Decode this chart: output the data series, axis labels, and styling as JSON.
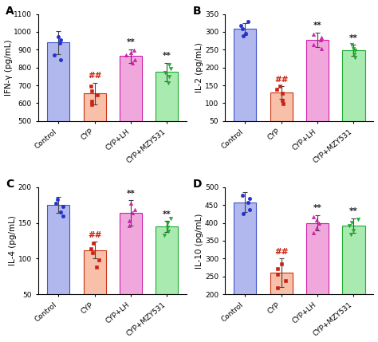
{
  "panels": [
    {
      "label": "A",
      "ylabel": "IFN-γ (pg/mL)",
      "ylim": [
        500,
        1100
      ],
      "yticks": [
        500,
        600,
        700,
        800,
        900,
        1000,
        1100
      ],
      "bar_values": [
        940,
        655,
        865,
        775
      ],
      "bar_errors": [
        65,
        60,
        38,
        52
      ],
      "bar_colors": [
        "#b0b8ee",
        "#f8c0a8",
        "#f0a8dc",
        "#a8eab0"
      ],
      "bar_edge_colors": [
        "#4455cc",
        "#cc3010",
        "#cc20aa",
        "#20aa30"
      ],
      "dot_colors": [
        "#2233cc",
        "#cc2010",
        "#cc20aa",
        "#20aa30"
      ],
      "dot_values": [
        [
          845,
          870,
          935,
          955,
          975
        ],
        [
          595,
          610,
          645,
          668,
          695
        ],
        [
          825,
          845,
          868,
          882,
          898
        ],
        [
          715,
          748,
          770,
          795,
          815
        ]
      ],
      "dot_markers": [
        "o",
        "s",
        "^",
        "v"
      ],
      "categories": [
        "Control",
        "CYP",
        "CYP+LH",
        "CYP+MZY531"
      ],
      "sig_labels": [
        "",
        "##",
        "**",
        "**"
      ],
      "sig_colors": [
        "",
        "#cc2010",
        "#222222",
        "#222222"
      ]
    },
    {
      "label": "B",
      "ylabel": "IL-2 (pg/mL)",
      "ylim": [
        50,
        350
      ],
      "yticks": [
        50,
        100,
        150,
        200,
        250,
        300,
        350
      ],
      "bar_values": [
        308,
        130,
        278,
        248
      ],
      "bar_errors": [
        16,
        18,
        20,
        16
      ],
      "bar_colors": [
        "#b0b8ee",
        "#f8c0a8",
        "#f0a8dc",
        "#a8eab0"
      ],
      "bar_edge_colors": [
        "#4455cc",
        "#cc3010",
        "#cc20aa",
        "#20aa30"
      ],
      "dot_colors": [
        "#2233cc",
        "#cc2010",
        "#cc20aa",
        "#20aa30"
      ],
      "dot_values": [
        [
          288,
          296,
          308,
          318,
          328
        ],
        [
          98,
          108,
          128,
          140,
          148
        ],
        [
          254,
          263,
          278,
          284,
          293
        ],
        [
          228,
          238,
          248,
          254,
          263
        ]
      ],
      "dot_markers": [
        "o",
        "s",
        "^",
        "v"
      ],
      "categories": [
        "Control",
        "CYP",
        "CYP+LH",
        "CYP+MZY531"
      ],
      "sig_labels": [
        "",
        "##",
        "**",
        "**"
      ],
      "sig_colors": [
        "",
        "#cc2010",
        "#222222",
        "#222222"
      ]
    },
    {
      "label": "C",
      "ylabel": "IL-4 (pg/mL)",
      "ylim": [
        50,
        200
      ],
      "yticks": [
        50,
        100,
        150,
        200
      ],
      "bar_values": [
        175,
        112,
        164,
        145
      ],
      "bar_errors": [
        11,
        12,
        18,
        8
      ],
      "bar_colors": [
        "#b0b8ee",
        "#f8c0a8",
        "#f0a8dc",
        "#a8eab0"
      ],
      "bar_edge_colors": [
        "#4455cc",
        "#cc3010",
        "#cc20aa",
        "#20aa30"
      ],
      "dot_colors": [
        "#2233cc",
        "#cc2010",
        "#cc20aa",
        "#20aa30"
      ],
      "dot_values": [
        [
          160,
          165,
          173,
          178,
          183
        ],
        [
          88,
          98,
          108,
          114,
          122
        ],
        [
          146,
          153,
          164,
          169,
          178
        ],
        [
          133,
          138,
          144,
          150,
          156
        ]
      ],
      "dot_markers": [
        "o",
        "s",
        "^",
        "v"
      ],
      "categories": [
        "Control",
        "CYP",
        "CYP+LH",
        "CYP+MZY531"
      ],
      "sig_labels": [
        "",
        "##",
        "**",
        "**"
      ],
      "sig_colors": [
        "",
        "#cc2010",
        "#222222",
        "#222222"
      ]
    },
    {
      "label": "D",
      "ylabel": "IL-10 (pg/mL)",
      "ylim": [
        200,
        500
      ],
      "yticks": [
        200,
        250,
        300,
        350,
        400,
        450,
        500
      ],
      "bar_values": [
        458,
        260,
        400,
        393
      ],
      "bar_errors": [
        28,
        40,
        22,
        20
      ],
      "bar_colors": [
        "#b0b8ee",
        "#f8c0a8",
        "#f0a8dc",
        "#a8eab0"
      ],
      "bar_edge_colors": [
        "#4455cc",
        "#cc3010",
        "#cc20aa",
        "#20aa30"
      ],
      "dot_colors": [
        "#2233cc",
        "#cc2010",
        "#cc20aa",
        "#20aa30"
      ],
      "dot_values": [
        [
          425,
          438,
          458,
          468,
          478
        ],
        [
          218,
          238,
          255,
          272,
          285
        ],
        [
          372,
          385,
          400,
          408,
          418
        ],
        [
          368,
          380,
          393,
          402,
          410
        ]
      ],
      "dot_markers": [
        "o",
        "s",
        "^",
        "v"
      ],
      "categories": [
        "Control",
        "CYP",
        "CYP+LH",
        "CYP+MZY531"
      ],
      "sig_labels": [
        "",
        "##",
        "**",
        "**"
      ],
      "sig_colors": [
        "",
        "#cc2010",
        "#222222",
        "#222222"
      ]
    }
  ],
  "background_color": "#ffffff",
  "bar_width": 0.62,
  "fontsize_label": 7.5,
  "fontsize_tick": 6.5,
  "fontsize_panel": 10,
  "fontsize_sig": 7.5
}
